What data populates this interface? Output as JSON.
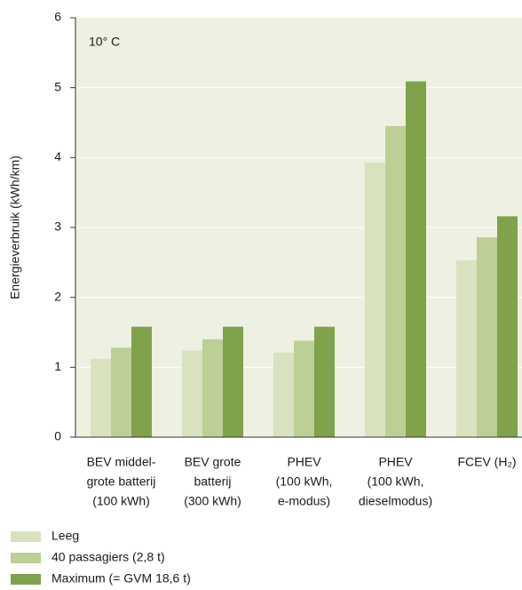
{
  "chart_data": {
    "type": "bar",
    "ylabel": "Energieverbruik (kWh/km)",
    "annotation": "10° C",
    "categories": [
      [
        "BEV middel-",
        "grote batterij",
        "(100 kWh)"
      ],
      [
        "BEV grote",
        "batterij",
        "(300 kWh)"
      ],
      [
        "PHEV",
        "(100 kWh,",
        "e-modus)"
      ],
      [
        "PHEV",
        "(100 kWh,",
        "dieselmodus)"
      ],
      [
        "FCEV (H₂)"
      ]
    ],
    "series": [
      {
        "name": "Leeg",
        "color": "#d9e2bf",
        "values": [
          1.12,
          1.24,
          1.21,
          3.93,
          2.53
        ]
      },
      {
        "name": "40 passagiers (2,8 t)",
        "color": "#bccf94",
        "values": [
          1.28,
          1.4,
          1.38,
          4.45,
          2.86
        ]
      },
      {
        "name": "Maximum (= GVM 18,6 t)",
        "color": "#7fa24a",
        "values": [
          1.58,
          1.58,
          1.58,
          5.09,
          3.16
        ]
      }
    ],
    "ylim": [
      0,
      6
    ],
    "yticks": [
      0,
      1,
      2,
      3,
      4,
      5,
      6
    ],
    "grid": true
  }
}
